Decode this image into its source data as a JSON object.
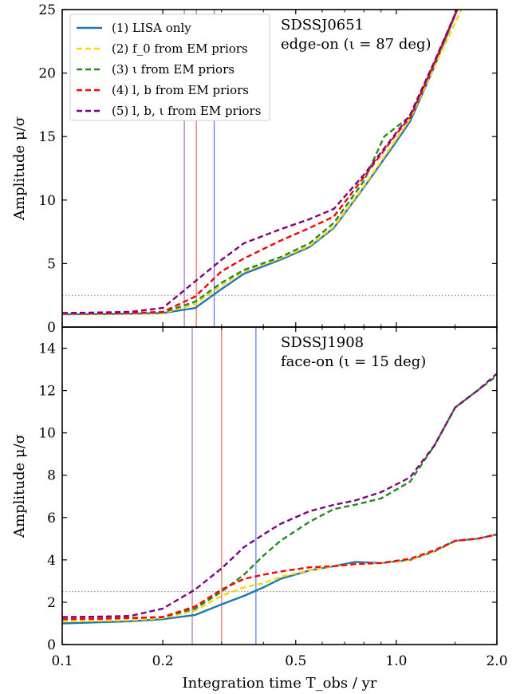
{
  "figure": {
    "xlabel": "Integration time T_obs / yr",
    "x_ticks": [
      0.1,
      0.2,
      0.5,
      1.0,
      2.0
    ],
    "x_tick_labels": [
      "0.1",
      "0.2",
      "0.5",
      "1.0",
      "2.0"
    ]
  },
  "chart_data": [
    {
      "type": "line",
      "title": "SDSSJ0651",
      "subtitle": "edge-on (ι = 87 deg)",
      "xlabel": "Integration time T_obs / yr",
      "ylabel": "Amplitude μ/σ",
      "xscale": "log",
      "xlim": [
        0.1,
        2.0
      ],
      "ylim": [
        0,
        25
      ],
      "y_ticks": [
        0,
        5,
        10,
        15,
        20,
        25
      ],
      "y_tick_labels": [
        "0",
        "5",
        "10",
        "15",
        "20",
        "25"
      ],
      "legend": "top-left",
      "threshold": 2.5,
      "vlines": [
        {
          "x": 0.232,
          "color": "#9b59b6"
        },
        {
          "x": 0.252,
          "color": "#e74c3c"
        },
        {
          "x": 0.285,
          "color": "#3b5bff"
        }
      ],
      "series": [
        {
          "name": "(1) LISA only",
          "color": "#1f77b4",
          "dash": "solid",
          "points": [
            [
              0.1,
              1.0
            ],
            [
              0.13,
              1.02
            ],
            [
              0.16,
              1.05
            ],
            [
              0.2,
              1.1
            ],
            [
              0.25,
              1.5
            ],
            [
              0.3,
              3.0
            ],
            [
              0.35,
              4.2
            ],
            [
              0.45,
              5.3
            ],
            [
              0.55,
              6.3
            ],
            [
              0.65,
              7.8
            ],
            [
              0.8,
              11.0
            ],
            [
              1.0,
              14.6
            ],
            [
              1.1,
              16.2
            ],
            [
              1.3,
              20.5
            ],
            [
              1.55,
              25.5
            ]
          ]
        },
        {
          "name": "(2) f_0 from EM priors",
          "color": "#ffd700",
          "dash": "dashed",
          "points": [
            [
              0.1,
              1.0
            ],
            [
              0.13,
              1.02
            ],
            [
              0.16,
              1.05
            ],
            [
              0.2,
              1.1
            ],
            [
              0.25,
              1.8
            ],
            [
              0.3,
              3.3
            ],
            [
              0.35,
              4.4
            ],
            [
              0.45,
              5.4
            ],
            [
              0.55,
              6.4
            ],
            [
              0.65,
              7.9
            ],
            [
              0.8,
              11.1
            ],
            [
              1.0,
              14.8
            ],
            [
              1.1,
              16.4
            ],
            [
              1.3,
              20.5
            ],
            [
              1.6,
              25.5
            ]
          ]
        },
        {
          "name": "(3) ι from EM priors",
          "color": "#228b22",
          "dash": "dashed",
          "points": [
            [
              0.1,
              1.05
            ],
            [
              0.13,
              1.07
            ],
            [
              0.16,
              1.1
            ],
            [
              0.2,
              1.15
            ],
            [
              0.25,
              2.0
            ],
            [
              0.3,
              3.5
            ],
            [
              0.35,
              4.5
            ],
            [
              0.45,
              5.5
            ],
            [
              0.55,
              6.6
            ],
            [
              0.65,
              8.2
            ],
            [
              0.8,
              11.5
            ],
            [
              0.92,
              15.0
            ],
            [
              1.1,
              16.6
            ],
            [
              1.3,
              20.8
            ],
            [
              1.55,
              25.5
            ]
          ]
        },
        {
          "name": "(4) l, b from EM priors",
          "color": "#ff0000",
          "dash": "dashed",
          "points": [
            [
              0.1,
              1.05
            ],
            [
              0.13,
              1.08
            ],
            [
              0.16,
              1.1
            ],
            [
              0.2,
              1.2
            ],
            [
              0.25,
              2.4
            ],
            [
              0.3,
              4.4
            ],
            [
              0.35,
              5.4
            ],
            [
              0.45,
              6.8
            ],
            [
              0.55,
              7.8
            ],
            [
              0.65,
              8.7
            ],
            [
              0.8,
              11.8
            ],
            [
              1.0,
              15.2
            ],
            [
              1.1,
              16.5
            ],
            [
              1.3,
              20.8
            ],
            [
              1.55,
              25.5
            ]
          ]
        },
        {
          "name": "(5) l, b, ι from EM priors",
          "color": "#800080",
          "dash": "dashed",
          "points": [
            [
              0.1,
              1.1
            ],
            [
              0.13,
              1.15
            ],
            [
              0.16,
              1.2
            ],
            [
              0.2,
              1.5
            ],
            [
              0.25,
              3.6
            ],
            [
              0.3,
              5.3
            ],
            [
              0.35,
              6.6
            ],
            [
              0.45,
              7.7
            ],
            [
              0.55,
              8.5
            ],
            [
              0.65,
              9.3
            ],
            [
              0.8,
              12.0
            ],
            [
              1.0,
              15.3
            ],
            [
              1.1,
              16.7
            ],
            [
              1.3,
              20.9
            ],
            [
              1.55,
              25.5
            ]
          ]
        }
      ]
    },
    {
      "type": "line",
      "title": "SDSSJ1908",
      "subtitle": "face-on (ι = 15 deg)",
      "xlabel": "Integration time T_obs / yr",
      "ylabel": "Amplitude μ/σ",
      "xscale": "log",
      "xlim": [
        0.1,
        2.0
      ],
      "ylim": [
        0,
        15
      ],
      "y_ticks": [
        0,
        2,
        4,
        6,
        8,
        10,
        12,
        14
      ],
      "y_tick_labels": [
        "0",
        "2",
        "4",
        "6",
        "8",
        "10",
        "12",
        "14"
      ],
      "threshold": 2.5,
      "vlines": [
        {
          "x": 0.245,
          "color": "#9b59b6"
        },
        {
          "x": 0.3,
          "color": "#e74c3c"
        },
        {
          "x": 0.38,
          "color": "#3b5bff"
        }
      ],
      "series": [
        {
          "name": "(1) LISA only",
          "color": "#1f77b4",
          "dash": "solid",
          "points": [
            [
              0.1,
              1.0
            ],
            [
              0.13,
              1.05
            ],
            [
              0.16,
              1.1
            ],
            [
              0.2,
              1.2
            ],
            [
              0.25,
              1.4
            ],
            [
              0.3,
              1.9
            ],
            [
              0.35,
              2.3
            ],
            [
              0.4,
              2.7
            ],
            [
              0.45,
              3.1
            ],
            [
              0.55,
              3.5
            ],
            [
              0.65,
              3.7
            ],
            [
              0.75,
              3.9
            ],
            [
              0.9,
              3.85
            ],
            [
              1.1,
              4.0
            ],
            [
              1.3,
              4.4
            ],
            [
              1.5,
              4.9
            ],
            [
              1.75,
              5.0
            ],
            [
              2.0,
              5.2
            ]
          ]
        },
        {
          "name": "(2) f_0 from EM priors",
          "color": "#ffd700",
          "dash": "dashed",
          "points": [
            [
              0.1,
              1.1
            ],
            [
              0.13,
              1.12
            ],
            [
              0.16,
              1.15
            ],
            [
              0.2,
              1.25
            ],
            [
              0.25,
              1.6
            ],
            [
              0.3,
              2.3
            ],
            [
              0.35,
              2.7
            ],
            [
              0.4,
              2.9
            ],
            [
              0.45,
              3.2
            ],
            [
              0.55,
              3.5
            ],
            [
              0.65,
              3.7
            ],
            [
              0.75,
              3.8
            ],
            [
              0.9,
              3.85
            ],
            [
              1.1,
              4.0
            ],
            [
              1.3,
              4.4
            ],
            [
              1.5,
              4.9
            ],
            [
              1.75,
              5.0
            ],
            [
              2.0,
              5.2
            ]
          ]
        },
        {
          "name": "(3) ι from EM priors",
          "color": "#228b22",
          "dash": "dashed",
          "points": [
            [
              0.1,
              1.2
            ],
            [
              0.13,
              1.22
            ],
            [
              0.16,
              1.25
            ],
            [
              0.2,
              1.3
            ],
            [
              0.25,
              1.7
            ],
            [
              0.3,
              2.5
            ],
            [
              0.35,
              3.3
            ],
            [
              0.4,
              4.2
            ],
            [
              0.45,
              4.9
            ],
            [
              0.55,
              5.8
            ],
            [
              0.65,
              6.4
            ],
            [
              0.75,
              6.6
            ],
            [
              0.9,
              6.9
            ],
            [
              1.1,
              7.7
            ],
            [
              1.3,
              9.4
            ],
            [
              1.5,
              11.2
            ],
            [
              1.75,
              12.0
            ],
            [
              2.0,
              12.7
            ]
          ]
        },
        {
          "name": "(4) l, b from EM priors",
          "color": "#ff0000",
          "dash": "dashed",
          "points": [
            [
              0.1,
              1.2
            ],
            [
              0.13,
              1.22
            ],
            [
              0.16,
              1.25
            ],
            [
              0.2,
              1.3
            ],
            [
              0.25,
              1.8
            ],
            [
              0.3,
              2.6
            ],
            [
              0.35,
              3.1
            ],
            [
              0.4,
              3.3
            ],
            [
              0.45,
              3.45
            ],
            [
              0.55,
              3.65
            ],
            [
              0.65,
              3.7
            ],
            [
              0.75,
              3.8
            ],
            [
              0.9,
              3.85
            ],
            [
              1.1,
              4.05
            ],
            [
              1.3,
              4.45
            ],
            [
              1.5,
              4.9
            ],
            [
              1.75,
              5.0
            ],
            [
              2.0,
              5.2
            ]
          ]
        },
        {
          "name": "(5) l, b, ι from EM priors",
          "color": "#800080",
          "dash": "dashed",
          "points": [
            [
              0.1,
              1.3
            ],
            [
              0.13,
              1.32
            ],
            [
              0.16,
              1.35
            ],
            [
              0.2,
              1.7
            ],
            [
              0.25,
              2.6
            ],
            [
              0.3,
              3.6
            ],
            [
              0.35,
              4.6
            ],
            [
              0.4,
              5.2
            ],
            [
              0.45,
              5.7
            ],
            [
              0.55,
              6.3
            ],
            [
              0.65,
              6.6
            ],
            [
              0.75,
              6.8
            ],
            [
              0.9,
              7.2
            ],
            [
              1.1,
              7.9
            ],
            [
              1.3,
              9.4
            ],
            [
              1.5,
              11.2
            ],
            [
              1.75,
              12.0
            ],
            [
              2.0,
              12.8
            ]
          ]
        }
      ]
    }
  ]
}
